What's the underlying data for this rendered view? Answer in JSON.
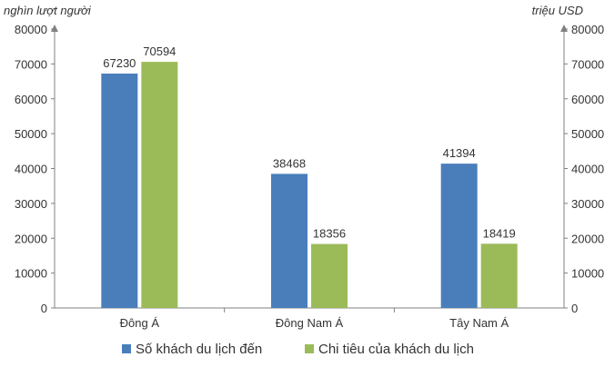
{
  "chart_data": {
    "type": "bar",
    "left_axis_label": "nghìn lượt người",
    "right_axis_label": "triệu USD",
    "categories": [
      "Đông Á",
      "Đông Nam Á",
      "Tây Nam Á"
    ],
    "series": [
      {
        "name": "Số khách du lịch đến",
        "values": [
          67230,
          38468,
          41394
        ],
        "color": "#4a7ebb",
        "axis": "left"
      },
      {
        "name": "Chi tiêu của khách du lịch",
        "values": [
          70594,
          18356,
          18419
        ],
        "color": "#9bbb59",
        "axis": "right"
      }
    ],
    "left_ylim": [
      0,
      80000
    ],
    "right_ylim": [
      0,
      80000
    ],
    "left_ticks": [
      "0",
      "10000",
      "20000",
      "30000",
      "40000",
      "50000",
      "60000",
      "70000",
      "80000"
    ],
    "right_ticks": [
      "0",
      "10000",
      "20000",
      "30000",
      "40000",
      "50000",
      "60000",
      "70000",
      "80000"
    ],
    "grid": false,
    "legend_position": "bottom"
  }
}
